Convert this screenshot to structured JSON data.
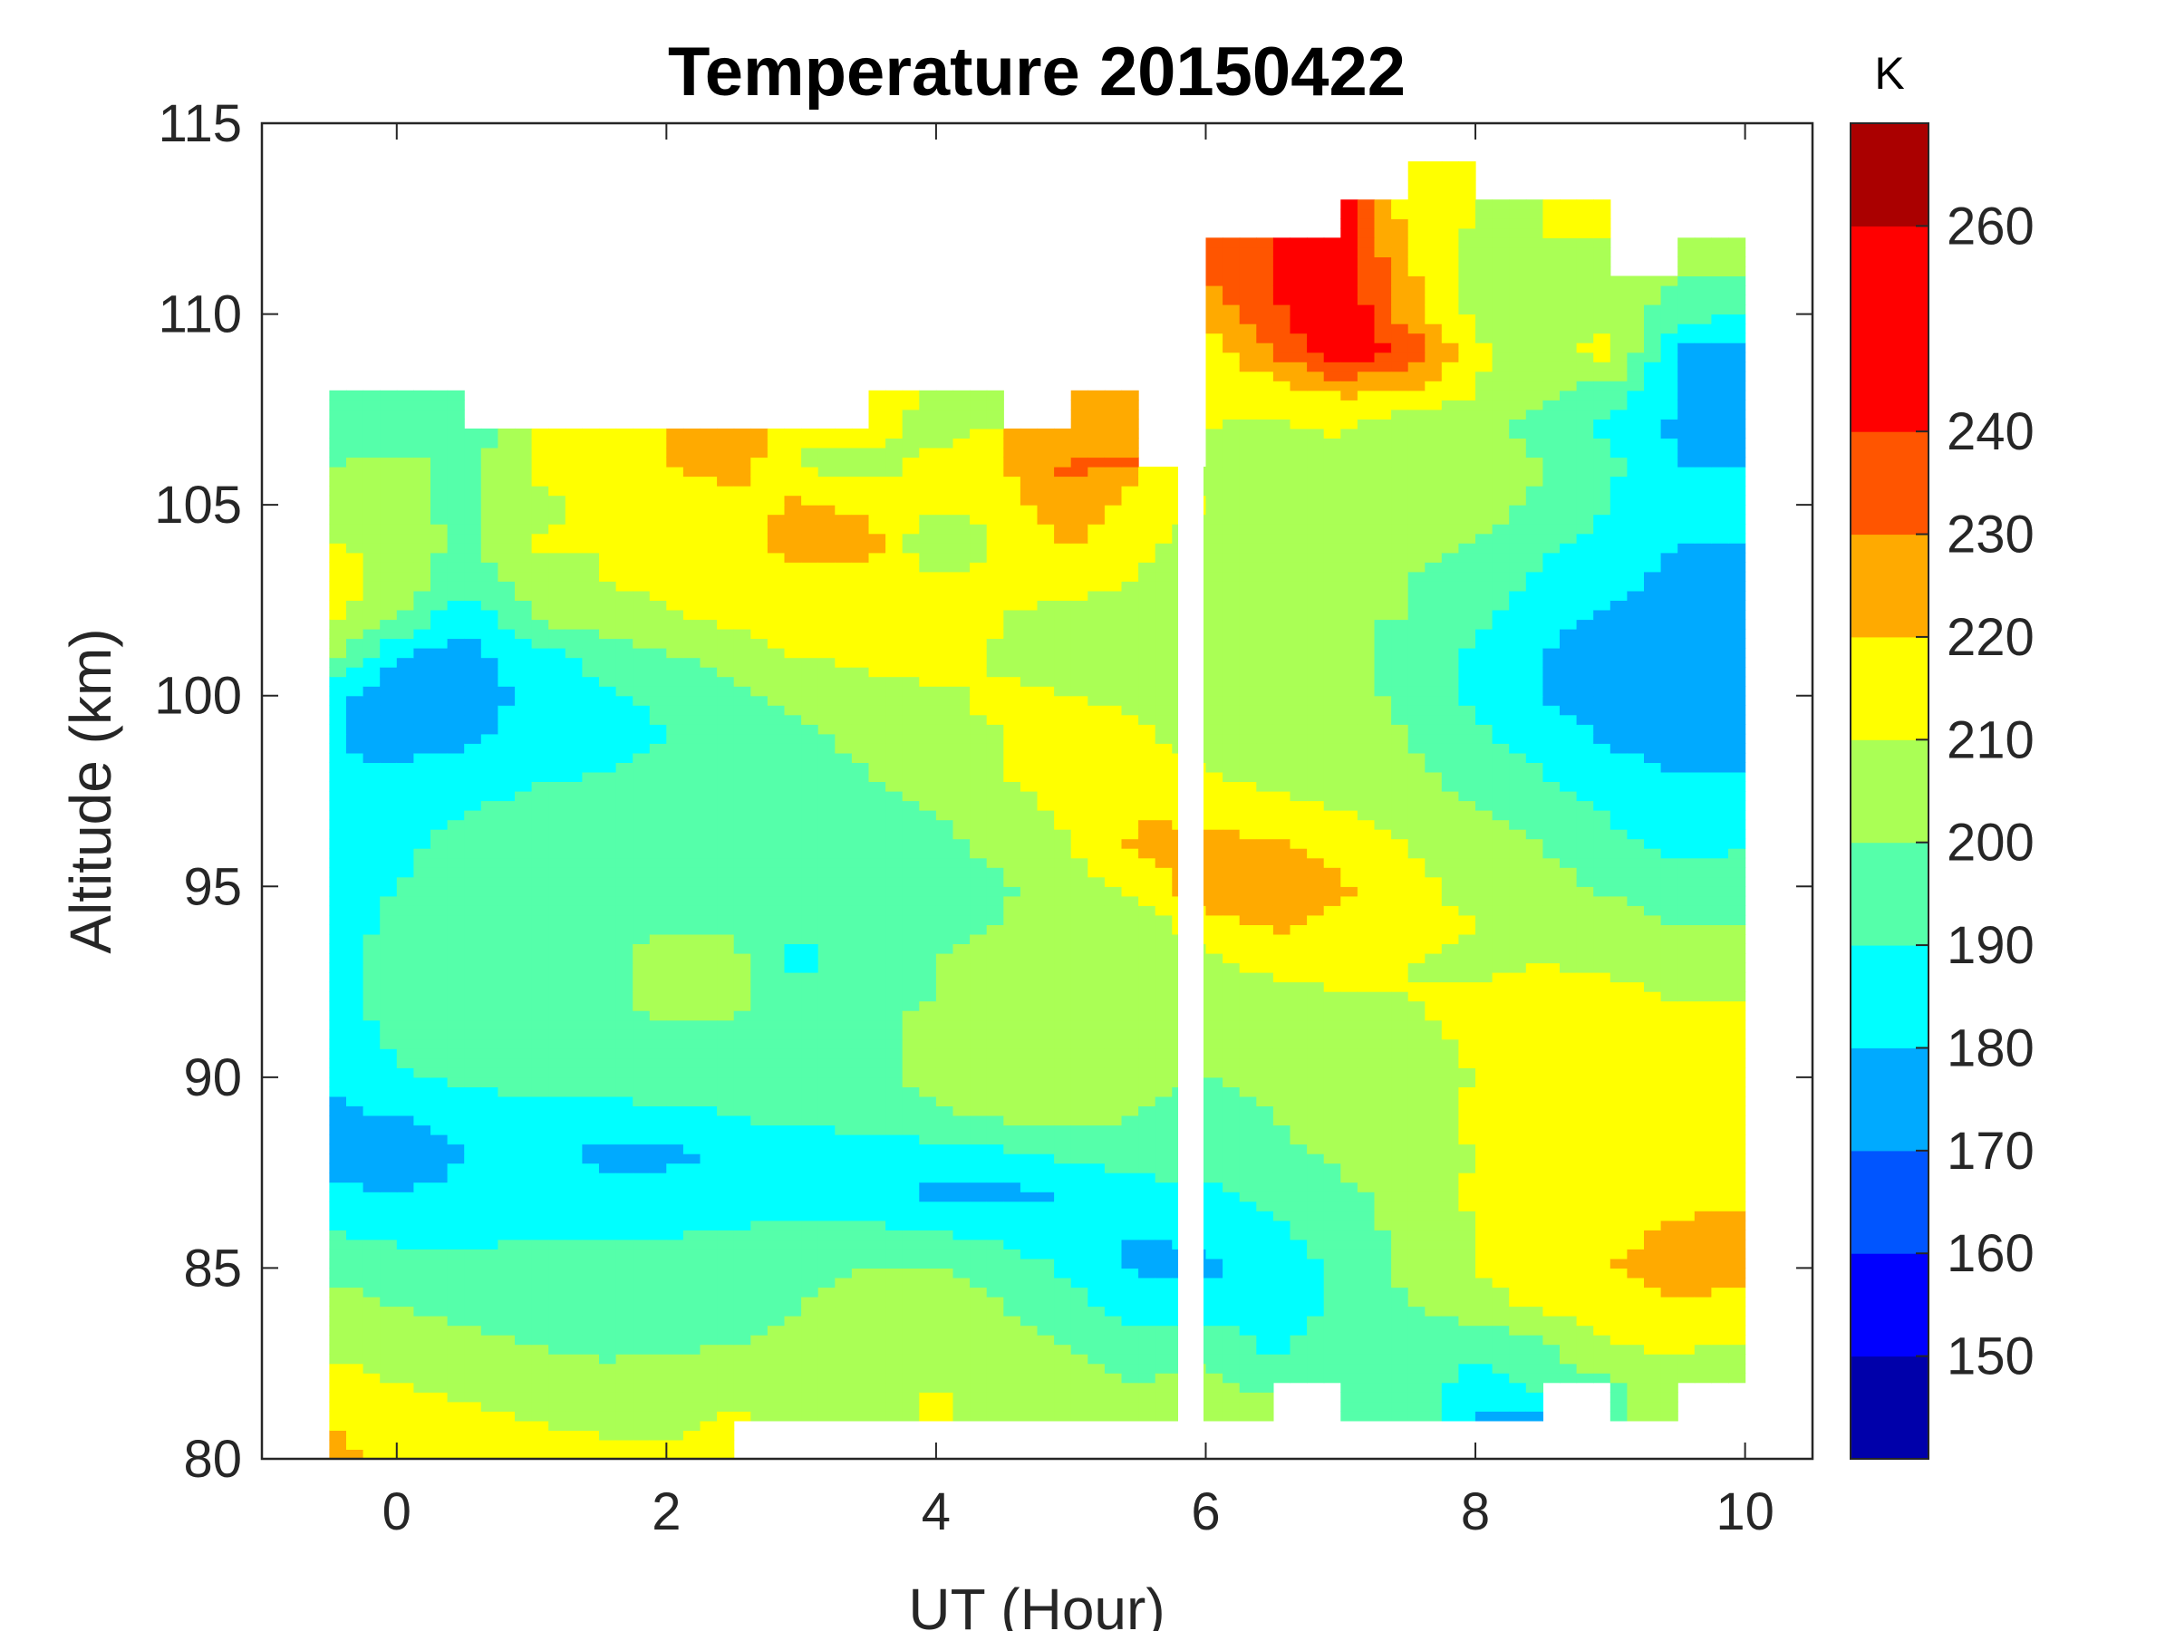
{
  "chart_data": {
    "type": "heatmap",
    "subtype": "filled-contour",
    "title": "Temperature 20150422",
    "xlabel": "UT (Hour)",
    "ylabel": "Altitude (km)",
    "xlim": [
      -1,
      10.5
    ],
    "ylim": [
      80,
      115
    ],
    "xticks": [
      0,
      2,
      4,
      6,
      8,
      10
    ],
    "yticks": [
      80,
      85,
      90,
      95,
      100,
      105,
      110,
      115
    ],
    "colorbar": {
      "label": "K",
      "range": [
        140,
        270
      ],
      "ticks": [
        150,
        160,
        170,
        180,
        190,
        200,
        210,
        220,
        230,
        240,
        260
      ],
      "levels": [
        140,
        150,
        160,
        170,
        180,
        190,
        200,
        210,
        220,
        230,
        240,
        250,
        260,
        270
      ],
      "colors": [
        "#0000AA",
        "#0000FF",
        "#0055FF",
        "#00AAFF",
        "#00FFFF",
        "#55FFAA",
        "#AAFF55",
        "#FFFF00",
        "#FFAA00",
        "#FF5500",
        "#FF0000",
        "#FF0000",
        "#AA0000"
      ],
      "location": "right"
    },
    "grid": false,
    "x": [
      -0.25,
      0.25,
      0.75,
      1.25,
      1.75,
      2.25,
      2.75,
      3.25,
      3.75,
      4.25,
      4.75,
      5.25,
      5.75,
      6.25,
      6.75,
      7.25,
      7.75,
      8.25,
      8.75,
      9.25,
      9.75
    ],
    "y": [
      80.5,
      81.5,
      82.5,
      83.5,
      84.5,
      85.5,
      86.5,
      87.5,
      88.5,
      89.5,
      90.5,
      91.5,
      92.5,
      93.5,
      94.5,
      95.5,
      96.5,
      97.5,
      98.5,
      99.5,
      100.5,
      101.5,
      102.5,
      103.5,
      104.5,
      105.5,
      106.5,
      107.5,
      108.5,
      109.5,
      110.5,
      111.5,
      112.5,
      113.5,
      114.5
    ],
    "z_units": "K",
    "z": [
      [
        225,
        215,
        215,
        213,
        213,
        212,
        null,
        null,
        null,
        null,
        null,
        null,
        null,
        null,
        null,
        null,
        null,
        null,
        null,
        null,
        null
      ],
      [
        220,
        213,
        212,
        210,
        208,
        208,
        212,
        204,
        205,
        212,
        207,
        205,
        202,
        208,
        null,
        200,
        200,
        178,
        null,
        200,
        null
      ],
      [
        213,
        210,
        208,
        205,
        203,
        204,
        207,
        205,
        206,
        210,
        207,
        204,
        200,
        203,
        195,
        200,
        198,
        185,
        195,
        198,
        205
      ],
      [
        208,
        205,
        202,
        200,
        198,
        198,
        200,
        202,
        206,
        208,
        205,
        200,
        195,
        196,
        188,
        195,
        195,
        192,
        198,
        210,
        212
      ],
      [
        203,
        200,
        198,
        195,
        194,
        195,
        196,
        200,
        204,
        205,
        200,
        194,
        185,
        185,
        185,
        192,
        200,
        206,
        212,
        215,
        218
      ],
      [
        198,
        196,
        195,
        195,
        195,
        196,
        196,
        198,
        200,
        200,
        196,
        188,
        178,
        178,
        184,
        192,
        202,
        210,
        215,
        220,
        225
      ],
      [
        190,
        186,
        186,
        188,
        188,
        189,
        190,
        192,
        192,
        190,
        186,
        182,
        180,
        183,
        188,
        195,
        203,
        210,
        214,
        216,
        222
      ],
      [
        182,
        180,
        182,
        185,
        183,
        185,
        186,
        186,
        182,
        178,
        178,
        180,
        186,
        188,
        193,
        198,
        204,
        212,
        216,
        216,
        216
      ],
      [
        176,
        173,
        180,
        182,
        178,
        176,
        184,
        186,
        184,
        186,
        188,
        192,
        196,
        195,
        198,
        202,
        205,
        210,
        214,
        215,
        215
      ],
      [
        178,
        180,
        184,
        186,
        186,
        187,
        190,
        192,
        194,
        198,
        202,
        205,
        200,
        197,
        200,
        203,
        205,
        212,
        215,
        214,
        212
      ],
      [
        182,
        188,
        192,
        195,
        196,
        196,
        196,
        197,
        198,
        203,
        206,
        205,
        202,
        200,
        202,
        204,
        206,
        210,
        215,
        215,
        214
      ],
      [
        185,
        192,
        196,
        196,
        197,
        198,
        199,
        198,
        197,
        205,
        205,
        203,
        202,
        202,
        204,
        204,
        207,
        212,
        216,
        216,
        215
      ],
      [
        186,
        193,
        196,
        195,
        198,
        203,
        201,
        196,
        198,
        200,
        202,
        203,
        205,
        206,
        207,
        208,
        210,
        212,
        215,
        213,
        210
      ],
      [
        187,
        193,
        196,
        196,
        198,
        203,
        203,
        186,
        198,
        200,
        202,
        205,
        205,
        208,
        212,
        214,
        210,
        208,
        210,
        208,
        205
      ],
      [
        186,
        192,
        196,
        197,
        198,
        199,
        199,
        192,
        197,
        199,
        200,
        204,
        205,
        215,
        222,
        217,
        212,
        210,
        208,
        205,
        200
      ],
      [
        185,
        190,
        195,
        196,
        197,
        197,
        197,
        194,
        196,
        198,
        199,
        206,
        212,
        228,
        228,
        222,
        212,
        208,
        204,
        198,
        193
      ],
      [
        183,
        188,
        193,
        195,
        196,
        196,
        196,
        195,
        196,
        198,
        202,
        210,
        222,
        225,
        222,
        215,
        210,
        205,
        200,
        193,
        188
      ],
      [
        182,
        185,
        190,
        193,
        194,
        194,
        194,
        194,
        196,
        200,
        206,
        212,
        220,
        215,
        213,
        210,
        205,
        200,
        195,
        189,
        184
      ],
      [
        181,
        181,
        184,
        188,
        190,
        192,
        194,
        196,
        200,
        205,
        210,
        214,
        216,
        210,
        207,
        205,
        202,
        196,
        190,
        184,
        180
      ],
      [
        181,
        176,
        178,
        182,
        186,
        190,
        194,
        198,
        204,
        208,
        210,
        214,
        212,
        204,
        203,
        205,
        200,
        192,
        185,
        178,
        175
      ],
      [
        181,
        175,
        176,
        182,
        188,
        192,
        198,
        203,
        206,
        208,
        212,
        210,
        208,
        202,
        205,
        203,
        198,
        188,
        180,
        175,
        172
      ],
      [
        205,
        178,
        176,
        185,
        193,
        198,
        205,
        210,
        212,
        214,
        208,
        206,
        205,
        202,
        207,
        202,
        198,
        188,
        180,
        176,
        172
      ],
      [
        212,
        200,
        180,
        200,
        205,
        208,
        212,
        215,
        214,
        216,
        210,
        206,
        205,
        200,
        204,
        200,
        200,
        192,
        182,
        178,
        175
      ],
      [
        215,
        206,
        194,
        205,
        210,
        212,
        220,
        218,
        216,
        214,
        212,
        214,
        210,
        202,
        205,
        205,
        200,
        196,
        188,
        182,
        178
      ],
      [
        210,
        208,
        196,
        212,
        210,
        214,
        218,
        222,
        224,
        198,
        212,
        220,
        212,
        206,
        204,
        206,
        202,
        200,
        192,
        186,
        180
      ],
      [
        205,
        202,
        198,
        206,
        214,
        212,
        216,
        222,
        218,
        212,
        215,
        230,
        215,
        210,
        202,
        205,
        205,
        205,
        198,
        190,
        182
      ],
      [
        200,
        205,
        195,
        212,
        215,
        220,
        225,
        210,
        205,
        214,
        220,
        232,
        null,
        207,
        206,
        204,
        205,
        208,
        200,
        192,
        180
      ],
      [
        190,
        192,
        null,
        null,
        null,
        null,
        null,
        null,
        214,
        205,
        null,
        222,
        null,
        210,
        208,
        212,
        202,
        204,
        196,
        188,
        178
      ],
      [
        null,
        null,
        null,
        null,
        null,
        null,
        null,
        null,
        null,
        null,
        null,
        null,
        null,
        212,
        215,
        222,
        220,
        210,
        202,
        196,
        180
      ],
      [
        null,
        null,
        null,
        null,
        null,
        null,
        null,
        null,
        null,
        null,
        null,
        null,
        null,
        215,
        230,
        248,
        238,
        212,
        205,
        215,
        178
      ],
      [
        null,
        null,
        null,
        null,
        null,
        null,
        null,
        null,
        null,
        null,
        null,
        null,
        null,
        222,
        238,
        250,
        225,
        208,
        200,
        206,
        195
      ],
      [
        null,
        null,
        null,
        null,
        null,
        null,
        null,
        null,
        null,
        null,
        null,
        null,
        null,
        232,
        240,
        248,
        222,
        205,
        204,
        null,
        200
      ],
      [
        null,
        null,
        null,
        null,
        null,
        null,
        null,
        null,
        null,
        null,
        null,
        null,
        null,
        null,
        null,
        245,
        218,
        208,
        210,
        null,
        null
      ],
      [
        null,
        null,
        null,
        null,
        null,
        null,
        null,
        null,
        null,
        null,
        null,
        null,
        null,
        null,
        null,
        null,
        215,
        null,
        null,
        null,
        null
      ],
      [
        null,
        null,
        null,
        null,
        null,
        null,
        null,
        null,
        null,
        null,
        null,
        null,
        null,
        null,
        null,
        null,
        null,
        null,
        null,
        null,
        null
      ]
    ]
  }
}
